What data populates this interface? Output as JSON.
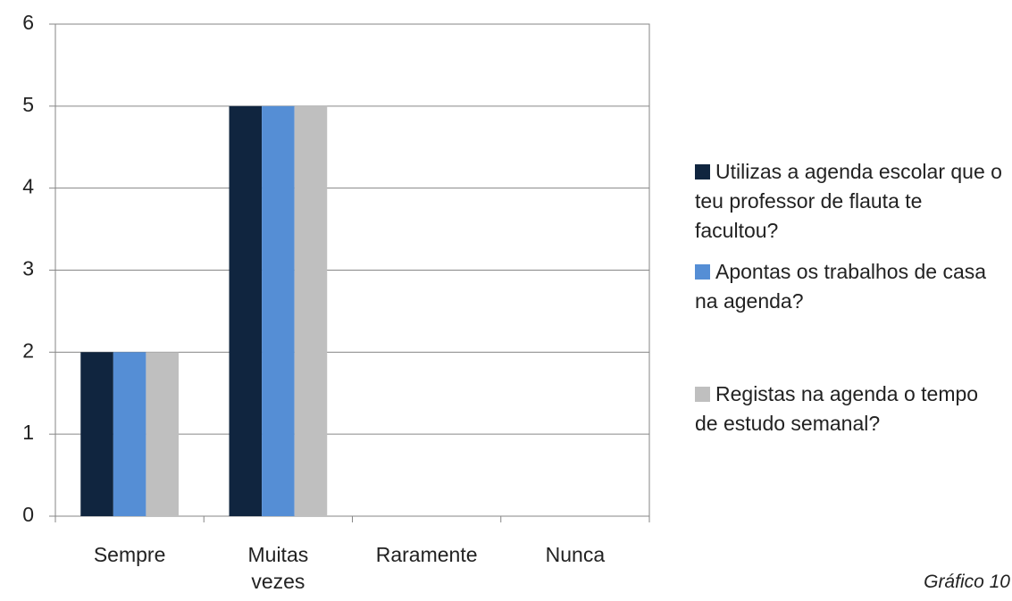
{
  "chart_data": {
    "type": "bar",
    "categories": [
      "Sempre",
      "Muitas vezes",
      "Raramente",
      "Nunca"
    ],
    "series": [
      {
        "name": "Utilizas a agenda escolar que o teu professor de flauta te facultou?",
        "color": "#10253f",
        "values": [
          2,
          5,
          0,
          0
        ]
      },
      {
        "name": "Apontas os trabalhos de casa na agenda?",
        "color": "#558ed5",
        "values": [
          2,
          5,
          0,
          0
        ]
      },
      {
        "name": "Registas na agenda o tempo de estudo semanal?",
        "color": "#bfbfbf",
        "values": [
          2,
          5,
          0,
          0
        ]
      }
    ],
    "ylim": [
      0,
      6
    ],
    "yticks": [
      0,
      1,
      2,
      3,
      4,
      5,
      6
    ],
    "grid": true,
    "legend": "right",
    "caption": "Gráfico 10"
  }
}
